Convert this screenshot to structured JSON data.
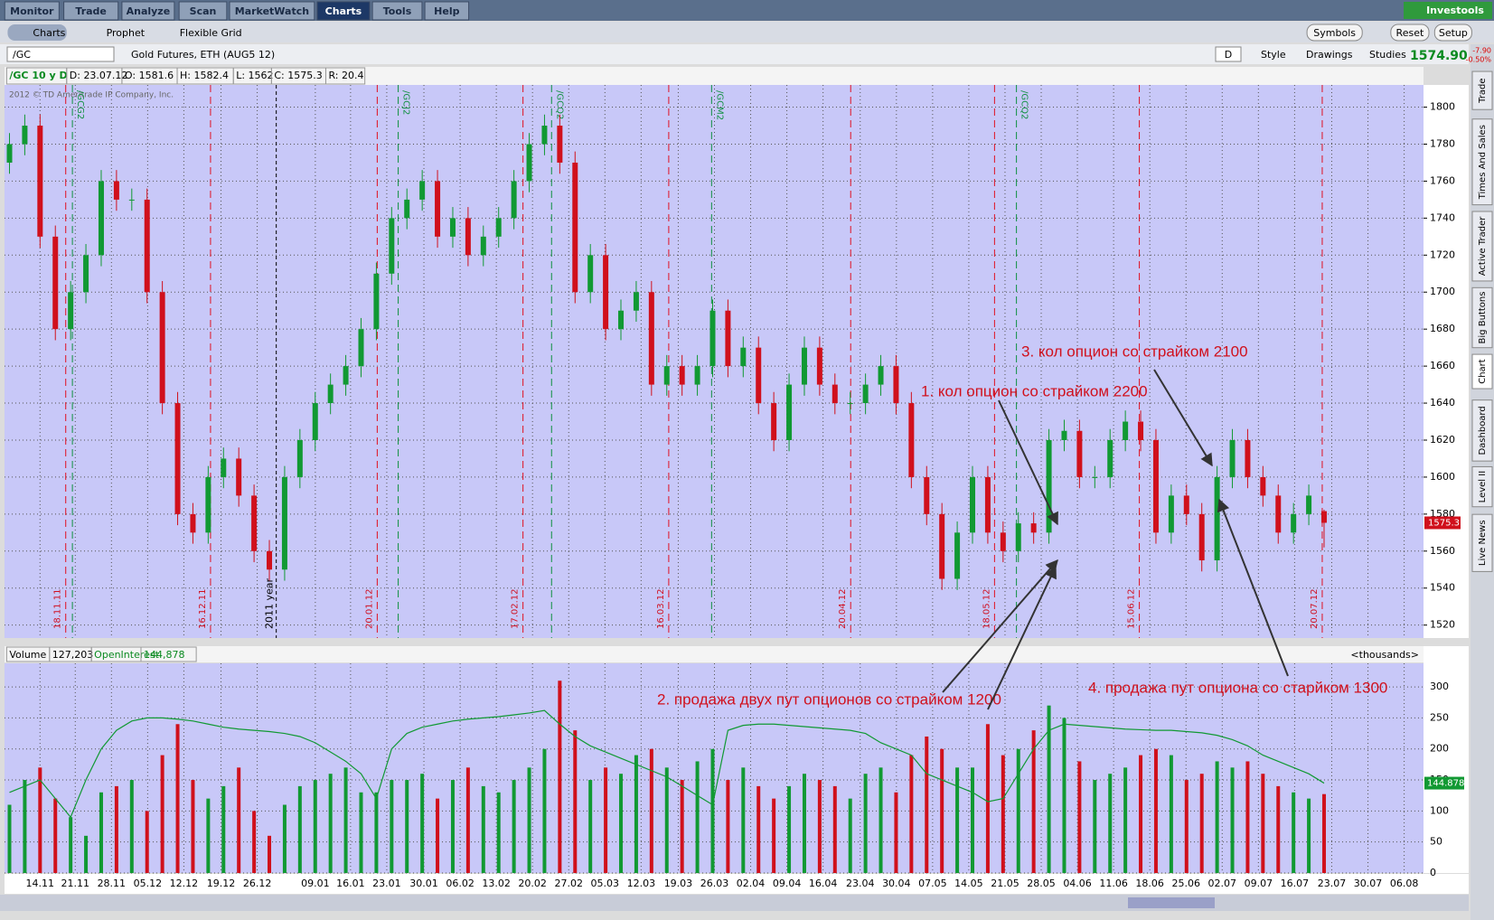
{
  "tabs": [
    "Monitor",
    "Trade",
    "Analyze",
    "Scan",
    "MarketWatch",
    "Charts",
    "Tools",
    "Help"
  ],
  "active_tab": "Charts",
  "brand": "Investools",
  "subtabs": [
    "Charts",
    "Prophet",
    "Flexible Grid"
  ],
  "buttons": [
    "Symbols",
    "Reset",
    "Setup"
  ],
  "symbol": "/GC",
  "description": "Gold Futures, ETH (AUG5 12)",
  "period": "D",
  "chart_tools": [
    "Style",
    "Drawings",
    "Studies"
  ],
  "last_price": "1574.90",
  "change": "-7.90",
  "change_pct": "-0.50%",
  "info": [
    "/GC 10 y D",
    "D: 23.07.12",
    "O: 1581.6",
    "H: 1582.4",
    "L: 1562",
    "C: 1575.3",
    "R: 20.4"
  ],
  "copyright": "2012 © TD Ameritrade IP Company, Inc.",
  "side_tabs": [
    "Trade",
    "Times And Sales",
    "Active Trader",
    "Big Buttons",
    "Chart",
    "Dashboard",
    "Level II",
    "Live News"
  ],
  "price_chart": {
    "ylim": [
      1513,
      1812
    ],
    "yticks": [
      1520,
      1540,
      1560,
      1580,
      1600,
      1620,
      1640,
      1660,
      1680,
      1700,
      1720,
      1740,
      1760,
      1780,
      1800
    ],
    "price_tag": "1575.3",
    "expiry_labels": [
      "18.11.11",
      "16.12.11",
      "20.01.12",
      "17.02.12",
      "16.03.12",
      "20.04.12",
      "18.05.12",
      "15.06.12",
      "20.07.12"
    ],
    "roll_labels": [
      "/GCG2",
      "/GCJ2",
      "/GCQ2",
      "/GCM2",
      "/GCQ2"
    ],
    "year_label": "2011 year",
    "candles": [
      [
        1770,
        1786,
        1764,
        1780
      ],
      [
        1780,
        1796,
        1774,
        1790
      ],
      [
        1790,
        1796,
        1724,
        1730
      ],
      [
        1730,
        1736,
        1674,
        1680
      ],
      [
        1680,
        1706,
        1674,
        1700
      ],
      [
        1700,
        1726,
        1694,
        1720
      ],
      [
        1720,
        1766,
        1714,
        1760
      ],
      [
        1760,
        1766,
        1744,
        1750
      ],
      [
        1750,
        1756,
        1744,
        1750
      ],
      [
        1750,
        1756,
        1694,
        1700
      ],
      [
        1700,
        1706,
        1634,
        1640
      ],
      [
        1640,
        1646,
        1574,
        1580
      ],
      [
        1580,
        1586,
        1564,
        1570
      ],
      [
        1570,
        1606,
        1564,
        1600
      ],
      [
        1600,
        1616,
        1594,
        1610
      ],
      [
        1610,
        1616,
        1584,
        1590
      ],
      [
        1590,
        1596,
        1554,
        1560
      ],
      [
        1560,
        1566,
        1544,
        1550
      ],
      [
        1550,
        1606,
        1544,
        1600
      ],
      [
        1600,
        1626,
        1594,
        1620
      ],
      [
        1620,
        1646,
        1614,
        1640
      ],
      [
        1640,
        1656,
        1634,
        1650
      ],
      [
        1650,
        1666,
        1644,
        1660
      ],
      [
        1660,
        1686,
        1654,
        1680
      ],
      [
        1680,
        1716,
        1674,
        1710
      ],
      [
        1710,
        1746,
        1704,
        1740
      ],
      [
        1740,
        1756,
        1734,
        1750
      ],
      [
        1750,
        1766,
        1744,
        1760
      ],
      [
        1760,
        1766,
        1724,
        1730
      ],
      [
        1730,
        1746,
        1724,
        1740
      ],
      [
        1740,
        1746,
        1714,
        1720
      ],
      [
        1720,
        1736,
        1714,
        1730
      ],
      [
        1730,
        1746,
        1724,
        1740
      ],
      [
        1740,
        1766,
        1734,
        1760
      ],
      [
        1760,
        1786,
        1754,
        1780
      ],
      [
        1780,
        1796,
        1774,
        1790
      ],
      [
        1790,
        1796,
        1764,
        1770
      ],
      [
        1770,
        1776,
        1694,
        1700
      ],
      [
        1700,
        1726,
        1694,
        1720
      ],
      [
        1720,
        1726,
        1674,
        1680
      ],
      [
        1680,
        1696,
        1674,
        1690
      ],
      [
        1690,
        1706,
        1684,
        1700
      ],
      [
        1700,
        1706,
        1644,
        1650
      ],
      [
        1650,
        1666,
        1644,
        1660
      ],
      [
        1660,
        1666,
        1644,
        1650
      ],
      [
        1650,
        1666,
        1644,
        1660
      ],
      [
        1660,
        1696,
        1654,
        1690
      ],
      [
        1690,
        1696,
        1654,
        1660
      ],
      [
        1660,
        1676,
        1654,
        1670
      ],
      [
        1670,
        1676,
        1634,
        1640
      ],
      [
        1640,
        1646,
        1614,
        1620
      ],
      [
        1620,
        1656,
        1614,
        1650
      ],
      [
        1650,
        1676,
        1644,
        1670
      ],
      [
        1670,
        1676,
        1644,
        1650
      ],
      [
        1650,
        1656,
        1634,
        1640
      ],
      [
        1640,
        1646,
        1634,
        1640
      ],
      [
        1640,
        1656,
        1634,
        1650
      ],
      [
        1650,
        1666,
        1644,
        1660
      ],
      [
        1660,
        1666,
        1634,
        1640
      ],
      [
        1640,
        1646,
        1594,
        1600
      ],
      [
        1600,
        1606,
        1574,
        1580
      ],
      [
        1580,
        1586,
        1539,
        1545
      ],
      [
        1545,
        1576,
        1539,
        1570
      ],
      [
        1570,
        1606,
        1564,
        1600
      ],
      [
        1600,
        1606,
        1564,
        1570
      ],
      [
        1570,
        1576,
        1554,
        1560
      ],
      [
        1560,
        1581,
        1554,
        1575
      ],
      [
        1575,
        1581,
        1564,
        1570
      ],
      [
        1570,
        1626,
        1564,
        1620
      ],
      [
        1620,
        1631,
        1614,
        1625
      ],
      [
        1625,
        1631,
        1594,
        1600
      ],
      [
        1600,
        1606,
        1594,
        1600
      ],
      [
        1600,
        1626,
        1594,
        1620
      ],
      [
        1620,
        1636,
        1614,
        1630
      ],
      [
        1630,
        1636,
        1614,
        1620
      ],
      [
        1620,
        1626,
        1564,
        1570
      ],
      [
        1570,
        1596,
        1564,
        1590
      ],
      [
        1590,
        1596,
        1574,
        1580
      ],
      [
        1580,
        1586,
        1549,
        1555
      ],
      [
        1555,
        1606,
        1549,
        1600
      ],
      [
        1600,
        1626,
        1594,
        1620
      ],
      [
        1620,
        1626,
        1594,
        1600
      ],
      [
        1600,
        1606,
        1584,
        1590
      ],
      [
        1590,
        1596,
        1564,
        1570
      ],
      [
        1570,
        1586,
        1564,
        1580
      ],
      [
        1580,
        1596,
        1574,
        1590
      ],
      [
        1581.6,
        1582.4,
        1562,
        1575.3
      ]
    ]
  },
  "volume_chart": {
    "labels": [
      "Volume",
      "127,203",
      "OpenInterest",
      "144,878",
      "<thousands>"
    ],
    "oi_tag": "144.878",
    "ylim": [
      0,
      338
    ],
    "yticks": [
      0,
      50,
      100,
      150,
      200,
      250,
      300
    ],
    "volume": [
      110,
      150,
      170,
      120,
      90,
      60,
      130,
      140,
      150,
      100,
      190,
      240,
      150,
      120,
      140,
      170,
      100,
      60,
      110,
      140,
      150,
      160,
      170,
      130,
      130,
      150,
      150,
      160,
      120,
      150,
      170,
      140,
      130,
      150,
      170,
      200,
      310,
      230,
      150,
      170,
      160,
      190,
      200,
      170,
      150,
      180,
      200,
      150,
      170,
      140,
      120,
      140,
      160,
      150,
      140,
      120,
      160,
      170,
      130,
      190,
      220,
      200,
      170,
      170,
      240,
      190,
      200,
      230,
      270,
      250,
      180,
      150,
      160,
      170,
      190,
      200,
      190,
      150,
      160,
      180,
      170,
      180,
      160,
      140,
      130,
      120,
      127.203
    ],
    "open_interest": [
      130,
      140,
      150,
      120,
      90,
      150,
      200,
      230,
      245,
      250,
      250,
      248,
      245,
      240,
      235,
      232,
      230,
      228,
      225,
      220,
      210,
      195,
      180,
      160,
      120,
      200,
      225,
      235,
      240,
      245,
      248,
      250,
      252,
      255,
      258,
      262,
      240,
      220,
      205,
      195,
      185,
      175,
      165,
      155,
      140,
      125,
      110,
      230,
      238,
      240,
      240,
      238,
      236,
      234,
      232,
      230,
      225,
      210,
      200,
      190,
      160,
      150,
      140,
      130,
      115,
      120,
      160,
      200,
      230,
      240,
      238,
      236,
      234,
      232,
      231,
      230,
      230,
      228,
      226,
      222,
      215,
      205,
      190,
      180,
      170,
      160,
      144.878
    ]
  },
  "dates": [
    "14.11",
    "21.11",
    "28.11",
    "05.12",
    "12.12",
    "19.12",
    "26.12",
    "09.01",
    "16.01",
    "23.01",
    "30.01",
    "06.02",
    "13.02",
    "20.02",
    "27.02",
    "05.03",
    "12.03",
    "19.03",
    "26.03",
    "02.04",
    "09.04",
    "16.04",
    "23.04",
    "30.04",
    "07.05",
    "14.05",
    "21.05",
    "28.05",
    "04.06",
    "11.06",
    "18.06",
    "25.06",
    "02.07",
    "09.07",
    "16.07",
    "23.07",
    "30.07",
    "06.08"
  ],
  "annotations": [
    "3. кол опцион со страйком 2100",
    "1. кол опцион со страйком 2200",
    "2. продажа двух  пут опционов со страйком 1200",
    "4. продажа пут опциона со старйком 1300"
  ]
}
